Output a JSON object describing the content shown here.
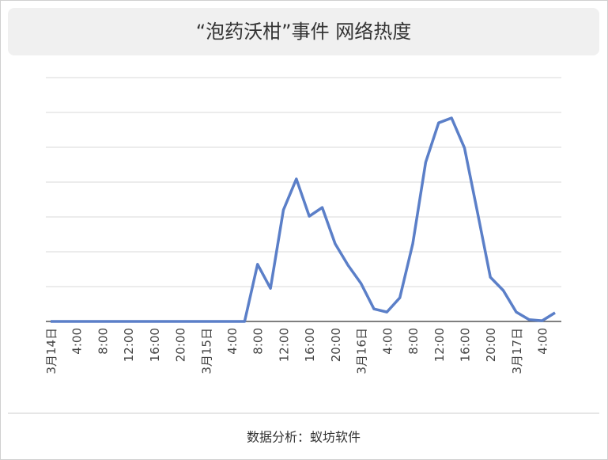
{
  "chart_data": {
    "type": "line",
    "title": "“泡药沃柑”事件 网络热度",
    "footer": "数据分析：蚁坊软件",
    "categories": [
      "3月14日",
      null,
      "4:00",
      null,
      "8:00",
      null,
      "12:00",
      null,
      "16:00",
      null,
      "20:00",
      null,
      "3月15日",
      null,
      "4:00",
      null,
      "8:00",
      null,
      "12:00",
      null,
      "16:00",
      null,
      "20:00",
      null,
      "3月16日",
      null,
      "4:00",
      null,
      "8:00",
      null,
      "12:00",
      null,
      "16:00",
      null,
      "20:00",
      null,
      "3月17日",
      null,
      "4:00",
      null
    ],
    "series": [
      {
        "color": "#5b7fc8",
        "values": [
          0,
          0,
          0,
          0,
          0,
          0,
          0,
          0,
          0,
          0,
          0,
          0,
          0,
          0,
          0,
          0,
          1.64,
          0.95,
          3.2,
          4.09,
          3.02,
          3.27,
          2.23,
          1.61,
          1.09,
          0.36,
          0.27,
          0.68,
          2.23,
          4.57,
          5.7,
          5.84,
          4.98,
          3.14,
          1.27,
          0.89,
          0.27,
          0.05,
          0.02,
          0.25
        ]
      }
    ],
    "ylim": [
      0,
      7
    ],
    "yticks": [
      0,
      1,
      2,
      3,
      4,
      5,
      6,
      7
    ],
    "grid": true
  }
}
